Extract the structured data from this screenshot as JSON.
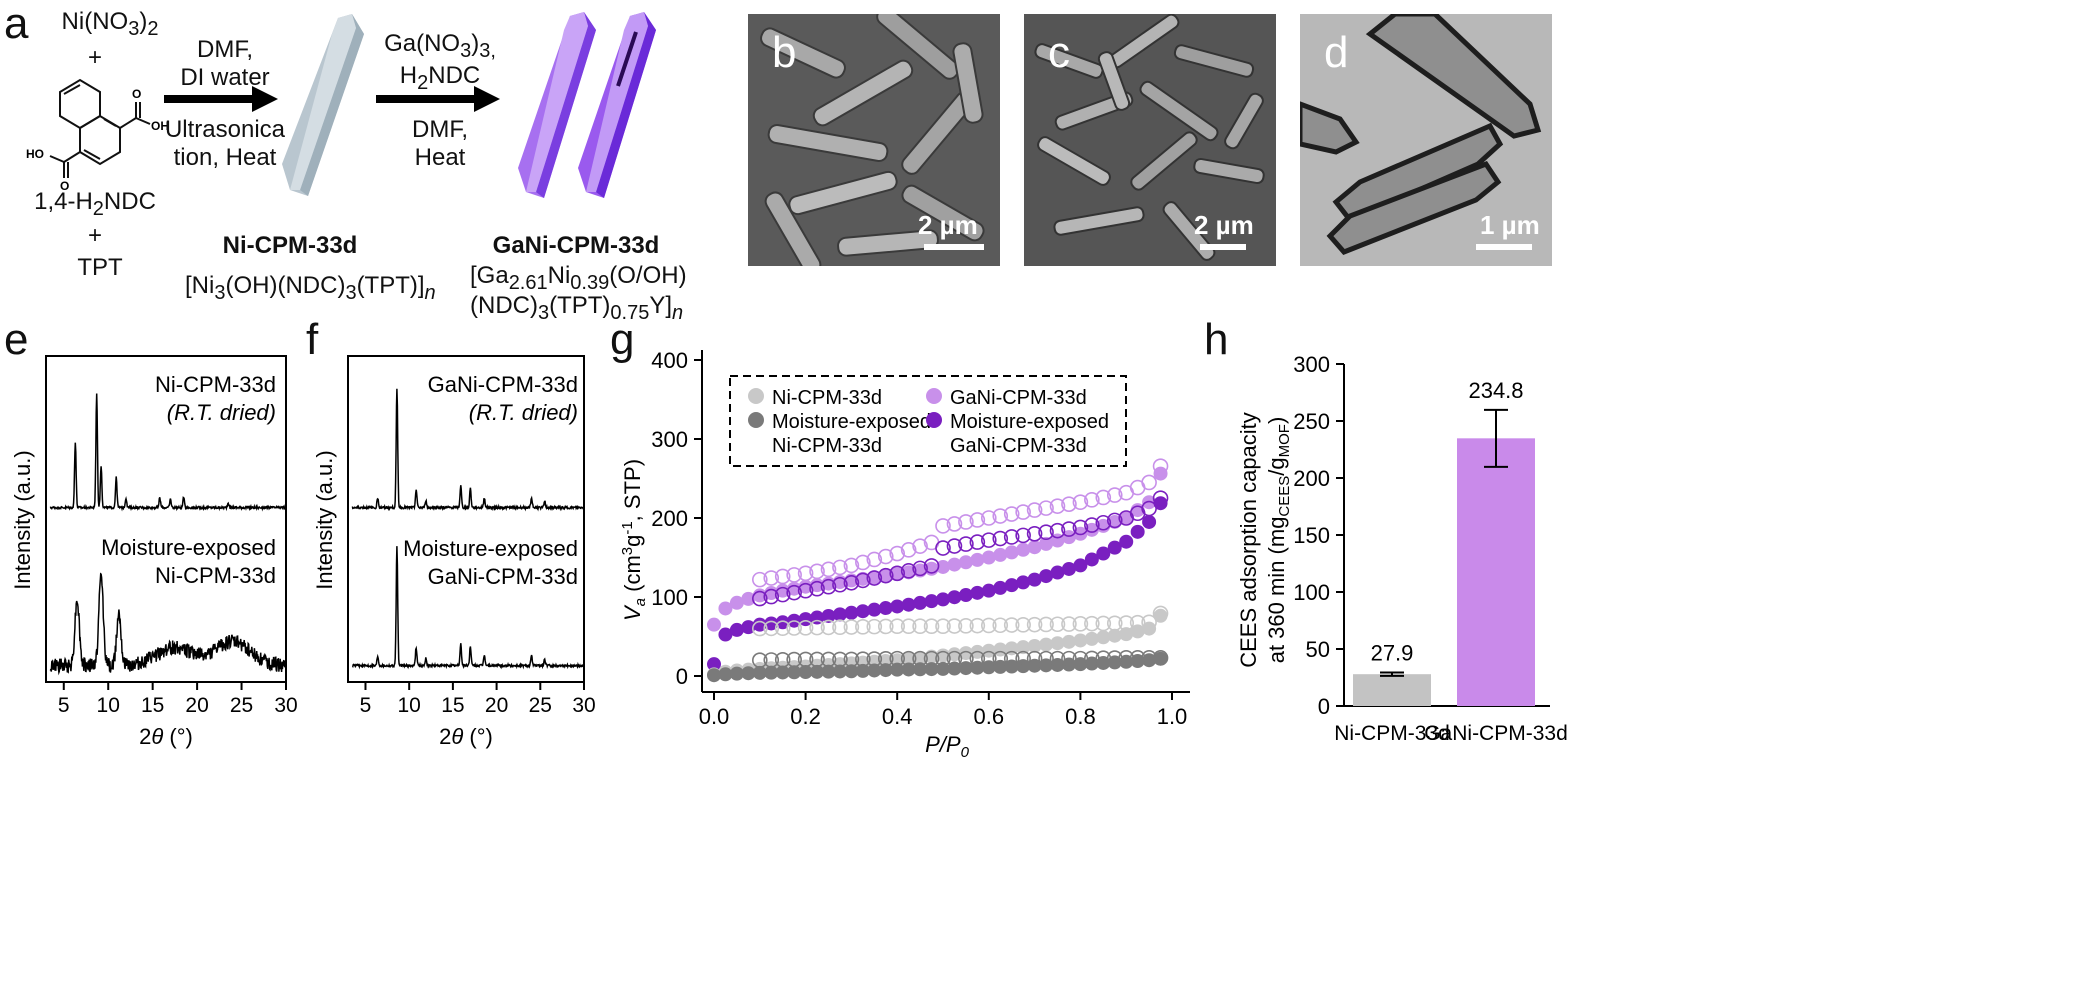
{
  "panels": {
    "a": "a",
    "b": "b",
    "c": "c",
    "d": "d",
    "e": "e",
    "f": "f",
    "g": "g",
    "h": "h"
  },
  "scheme": {
    "reagent1": "Ni(NO3)2",
    "plus": "+",
    "ndc_label": "1,4-H2NDC",
    "tpt": "TPT",
    "oh_label": "OH",
    "ho_label": "HO",
    "o_label": "O",
    "step1_top1": "DMF,",
    "step1_top2": "DI water",
    "step1_bot1": "Ultrasonica",
    "step1_bot2": "tion, Heat",
    "step2_top1": "Ga(NO3)3,",
    "step2_top2": "H2NDC",
    "step2_bot1": "DMF,",
    "step2_bot2": "Heat",
    "product1_name": "Ni-CPM-33d",
    "product1_formula": "[Ni3(OH)(NDC)3(TPT)]n",
    "product2_name": "GaNi-CPM-33d",
    "product2_formula1": "[Ga2.61Ni0.39(O/OH)",
    "product2_formula2": "(NDC)3(TPT)0.75Y]n"
  },
  "micrographs": {
    "b_scale": "2 µm",
    "c_scale": "2 µm",
    "d_scale": "1 µm"
  },
  "colors": {
    "ni_light": "#c8c8c8",
    "ni_dark": "#7a7a7a",
    "ga_light": "#c890ea",
    "ga_dark": "#7a1fc0",
    "bar_ni": "#c3c3c3",
    "bar_ga": "#c98aea"
  },
  "chart_data": [
    {
      "id": "e",
      "type": "line",
      "xlabel": "2θ (°)",
      "ylabel": "Intensity (a.u.)",
      "xlim": [
        3,
        30
      ],
      "xticks": [
        5,
        10,
        15,
        20,
        25,
        30
      ],
      "series": [
        {
          "name": "Ni-CPM-33d",
          "note": "(R.T. dried)",
          "peaks": [
            [
              6.3,
              0.55
            ],
            [
              8.7,
              0.95
            ],
            [
              9.2,
              0.35
            ],
            [
              10.9,
              0.25
            ],
            [
              12.0,
              0.08
            ],
            [
              15.8,
              0.08
            ],
            [
              17.0,
              0.07
            ],
            [
              18.5,
              0.09
            ],
            [
              23.5,
              0.04
            ]
          ]
        },
        {
          "name": "Moisture-exposed",
          "name2": "Ni-CPM-33d",
          "peaks": [
            [
              6.5,
              0.55
            ],
            [
              9.2,
              0.75
            ],
            [
              11.2,
              0.45
            ],
            [
              17.5,
              0.15
            ],
            [
              24.0,
              0.2
            ]
          ]
        }
      ]
    },
    {
      "id": "f",
      "type": "line",
      "xlabel": "2θ (°)",
      "ylabel": "Intensity (a.u.)",
      "xlim": [
        3,
        30
      ],
      "xticks": [
        5,
        10,
        15,
        20,
        25,
        30
      ],
      "series": [
        {
          "name": "GaNi-CPM-33d",
          "note": "(R.T. dried)",
          "peaks": [
            [
              6.4,
              0.08
            ],
            [
              8.6,
              1.0
            ],
            [
              10.8,
              0.15
            ],
            [
              11.9,
              0.06
            ],
            [
              15.9,
              0.18
            ],
            [
              17.0,
              0.16
            ],
            [
              18.6,
              0.08
            ],
            [
              24.0,
              0.08
            ],
            [
              25.5,
              0.05
            ]
          ]
        },
        {
          "name": "Moisture-exposed",
          "name2": "GaNi-CPM-33d",
          "peaks": [
            [
              6.4,
              0.08
            ],
            [
              8.6,
              1.0
            ],
            [
              10.8,
              0.15
            ],
            [
              11.9,
              0.06
            ],
            [
              15.9,
              0.18
            ],
            [
              17.0,
              0.16
            ],
            [
              18.6,
              0.09
            ],
            [
              24.0,
              0.08
            ],
            [
              25.5,
              0.05
            ]
          ]
        }
      ]
    },
    {
      "id": "g",
      "type": "scatter",
      "xlabel": "P/P0",
      "ylabel": "Va (cm3g-1, STP)",
      "xlim": [
        0,
        1.0
      ],
      "ylim": [
        0,
        400
      ],
      "xticks": [
        0.0,
        0.2,
        0.4,
        0.6,
        0.8,
        1.0
      ],
      "yticks": [
        0,
        100,
        200,
        300,
        400
      ],
      "legend": [
        {
          "label": "Ni-CPM-33d",
          "color": "#c8c8c8"
        },
        {
          "label": "GaNi-CPM-33d",
          "color": "#c890ea"
        },
        {
          "label": "Moisture-exposed",
          "label2": "Ni-CPM-33d",
          "color": "#7a7a7a"
        },
        {
          "label": "Moisture-exposed",
          "label2": "GaNi-CPM-33d",
          "color": "#7a1fc0"
        }
      ],
      "series": [
        {
          "name": "GaNi-CPM-33d",
          "color": "#c890ea",
          "adsorption": [
            [
              0.0,
              65
            ],
            [
              0.01,
              78
            ],
            [
              0.03,
              88
            ],
            [
              0.06,
              95
            ],
            [
              0.1,
              102
            ],
            [
              0.15,
              108
            ],
            [
              0.2,
              113
            ],
            [
              0.3,
              121
            ],
            [
              0.4,
              129
            ],
            [
              0.5,
              138
            ],
            [
              0.6,
              150
            ],
            [
              0.7,
              163
            ],
            [
              0.8,
              180
            ],
            [
              0.9,
              200
            ],
            [
              0.95,
              220
            ],
            [
              0.99,
              278
            ]
          ],
          "desorption": [
            [
              0.99,
              278
            ],
            [
              0.95,
              245
            ],
            [
              0.9,
              232
            ],
            [
              0.8,
              220
            ],
            [
              0.7,
              210
            ],
            [
              0.6,
              200
            ],
            [
              0.5,
              190
            ],
            [
              0.48,
              170
            ],
            [
              0.4,
              155
            ],
            [
              0.3,
              140
            ],
            [
              0.2,
              130
            ],
            [
              0.1,
              122
            ]
          ]
        },
        {
          "name": "Moisture-exposed GaNi-CPM-33d",
          "color": "#7a1fc0",
          "adsorption": [
            [
              0.0,
              15
            ],
            [
              0.01,
              45
            ],
            [
              0.03,
              55
            ],
            [
              0.06,
              60
            ],
            [
              0.1,
              65
            ],
            [
              0.15,
              68
            ],
            [
              0.2,
              72
            ],
            [
              0.3,
              80
            ],
            [
              0.4,
              88
            ],
            [
              0.5,
              97
            ],
            [
              0.6,
              108
            ],
            [
              0.7,
              122
            ],
            [
              0.8,
              140
            ],
            [
              0.9,
              170
            ],
            [
              0.95,
              195
            ],
            [
              0.99,
              233
            ]
          ],
          "desorption": [
            [
              0.99,
              233
            ],
            [
              0.95,
              212
            ],
            [
              0.9,
              200
            ],
            [
              0.8,
              188
            ],
            [
              0.7,
              180
            ],
            [
              0.6,
              172
            ],
            [
              0.5,
              162
            ],
            [
              0.48,
              140
            ],
            [
              0.4,
              130
            ],
            [
              0.3,
              118
            ],
            [
              0.2,
              108
            ],
            [
              0.1,
              98
            ]
          ]
        },
        {
          "name": "Ni-CPM-33d",
          "color": "#c8c8c8",
          "adsorption": [
            [
              0.0,
              2
            ],
            [
              0.02,
              5
            ],
            [
              0.05,
              7
            ],
            [
              0.1,
              9
            ],
            [
              0.2,
              12
            ],
            [
              0.3,
              16
            ],
            [
              0.4,
              20
            ],
            [
              0.5,
              26
            ],
            [
              0.6,
              32
            ],
            [
              0.7,
              38
            ],
            [
              0.8,
              45
            ],
            [
              0.9,
              53
            ],
            [
              0.95,
              60
            ],
            [
              0.99,
              86
            ]
          ],
          "desorption": [
            [
              0.99,
              86
            ],
            [
              0.95,
              68
            ],
            [
              0.9,
              67
            ],
            [
              0.8,
              66
            ],
            [
              0.7,
              65
            ],
            [
              0.6,
              64
            ],
            [
              0.5,
              63
            ],
            [
              0.4,
              63
            ],
            [
              0.3,
              62
            ],
            [
              0.2,
              61
            ],
            [
              0.1,
              60
            ]
          ]
        },
        {
          "name": "Moisture-exposed Ni-CPM-33d",
          "color": "#7a7a7a",
          "adsorption": [
            [
              0.0,
              1
            ],
            [
              0.02,
              2
            ],
            [
              0.05,
              3
            ],
            [
              0.1,
              4
            ],
            [
              0.2,
              5
            ],
            [
              0.3,
              6
            ],
            [
              0.4,
              8
            ],
            [
              0.5,
              9
            ],
            [
              0.6,
              11
            ],
            [
              0.7,
              13
            ],
            [
              0.8,
              15
            ],
            [
              0.9,
              18
            ],
            [
              0.95,
              20
            ],
            [
              0.99,
              23
            ]
          ],
          "desorption": [
            [
              0.99,
              23
            ],
            [
              0.9,
              23
            ],
            [
              0.8,
              22
            ],
            [
              0.7,
              22
            ],
            [
              0.6,
              22
            ],
            [
              0.5,
              22
            ],
            [
              0.4,
              22
            ],
            [
              0.3,
              21
            ],
            [
              0.2,
              21
            ],
            [
              0.1,
              20
            ]
          ]
        }
      ]
    },
    {
      "id": "h",
      "type": "bar",
      "title": "",
      "categories": [
        "Ni-CPM-33d",
        "GaNi-CPM-33d"
      ],
      "values": [
        27.9,
        234.8
      ],
      "errors": [
        1.5,
        25.0
      ],
      "value_labels": [
        "27.9",
        "234.8"
      ],
      "ylabel1": "CEES adsorption capacity",
      "ylabel2": "at 360 min (mgCEES/gMOF)",
      "ylim": [
        0,
        300
      ],
      "yticks": [
        0,
        50,
        100,
        150,
        200,
        250,
        300
      ]
    }
  ]
}
